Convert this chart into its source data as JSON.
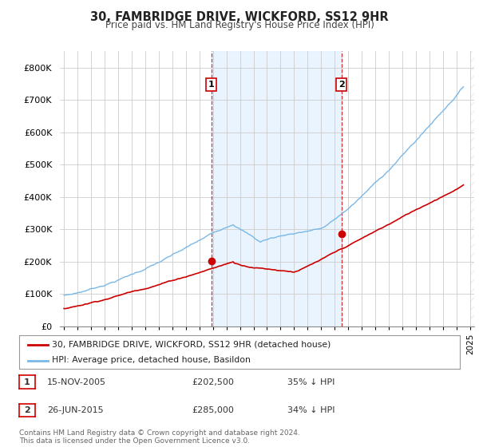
{
  "title": "30, FAMBRIDGE DRIVE, WICKFORD, SS12 9HR",
  "subtitle": "Price paid vs. HM Land Registry's House Price Index (HPI)",
  "ylim": [
    0,
    850000
  ],
  "yticks": [
    0,
    100000,
    200000,
    300000,
    400000,
    500000,
    600000,
    700000,
    800000
  ],
  "hpi_color": "#7ab8e8",
  "hpi_fill_color": "#ddeeff",
  "price_color": "#cc0000",
  "sale1_date_x": 2005.88,
  "sale1_price": 202500,
  "sale1_label": "1",
  "sale2_date_x": 2015.49,
  "sale2_price": 285000,
  "sale2_label": "2",
  "legend_label1": "30, FAMBRIDGE DRIVE, WICKFORD, SS12 9HR (detached house)",
  "legend_label2": "HPI: Average price, detached house, Basildon",
  "table_row1": [
    "1",
    "15-NOV-2005",
    "£202,500",
    "35% ↓ HPI"
  ],
  "table_row2": [
    "2",
    "26-JUN-2015",
    "£285,000",
    "34% ↓ HPI"
  ],
  "footer": "Contains HM Land Registry data © Crown copyright and database right 2024.\nThis data is licensed under the Open Government Licence v3.0.",
  "background_color": "#ffffff",
  "xlim_start": 1994.7,
  "xlim_end": 2025.3
}
